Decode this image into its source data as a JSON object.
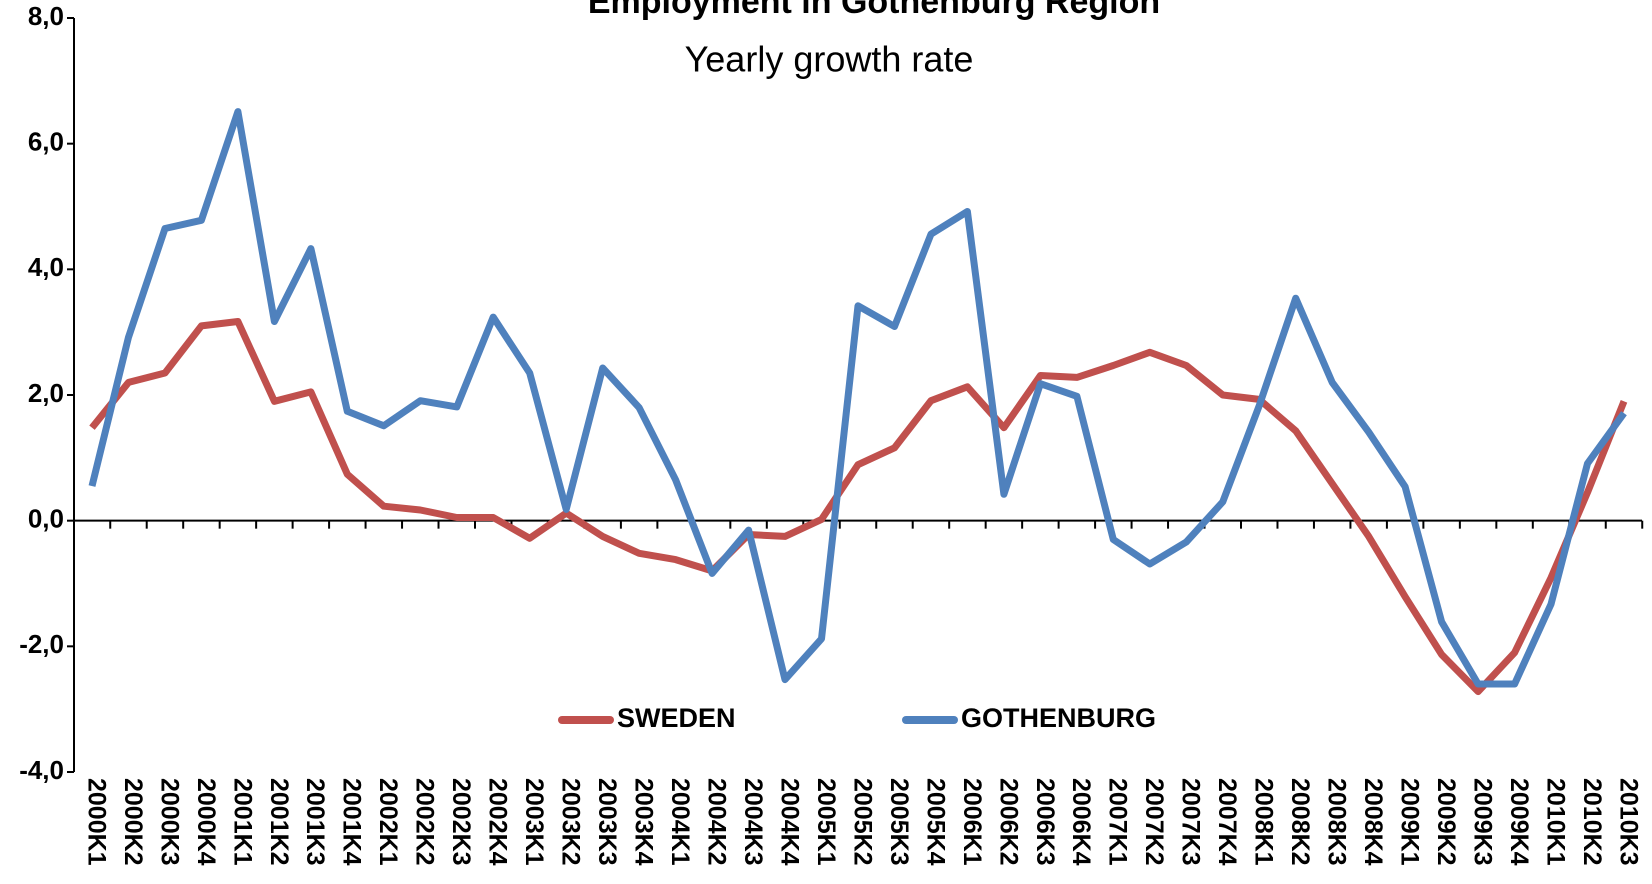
{
  "chart_data": {
    "type": "line",
    "title": "Employment in Gothenburg Region",
    "subtitle": "Yearly growth rate",
    "categories": [
      "2000K1",
      "2000K2",
      "2000K3",
      "2000K4",
      "2001K1",
      "2001K2",
      "2001K3",
      "2001K4",
      "2002K1",
      "2002K2",
      "2002K3",
      "2002K4",
      "2003K1",
      "2003K2",
      "2003K3",
      "2003K4",
      "2004K1",
      "2004K2",
      "2004K3",
      "2004K4",
      "2005K1",
      "2005K2",
      "2005K3",
      "2005K4",
      "2006K1",
      "2006K2",
      "2006K3",
      "2006K4",
      "2007K1",
      "2007K2",
      "2007K3",
      "2007K4",
      "2008K1",
      "2008K2",
      "2008K3",
      "2008K4",
      "2009K1",
      "2009K2",
      "2009K3",
      "2009K4",
      "2010K1",
      "2010K2",
      "2010K3"
    ],
    "series": [
      {
        "name": "SWEDEN",
        "color": "#c0504d",
        "values": [
          1.48,
          2.2,
          2.35,
          3.1,
          3.17,
          1.9,
          2.05,
          0.74,
          0.23,
          0.17,
          0.05,
          0.05,
          -0.28,
          0.12,
          -0.25,
          -0.52,
          -0.62,
          -0.8,
          -0.22,
          -0.25,
          0.02,
          0.89,
          1.16,
          1.91,
          2.13,
          1.48,
          2.31,
          2.28,
          2.47,
          2.68,
          2.47,
          2.0,
          1.93,
          1.43,
          0.59,
          -0.25,
          -1.21,
          -2.13,
          -2.72,
          -2.1,
          -0.91,
          0.45,
          1.9
        ]
      },
      {
        "name": "GOTHENBURG",
        "color": "#4f81bd",
        "values": [
          0.55,
          2.92,
          4.65,
          4.78,
          6.51,
          3.17,
          4.33,
          1.74,
          1.51,
          1.91,
          1.81,
          3.24,
          2.35,
          0.18,
          2.43,
          1.8,
          0.65,
          -0.84,
          -0.15,
          -2.53,
          -1.88,
          3.42,
          3.09,
          4.56,
          4.92,
          0.42,
          2.18,
          1.98,
          -0.3,
          -0.69,
          -0.34,
          0.3,
          1.83,
          3.54,
          2.2,
          1.41,
          0.54,
          -1.61,
          -2.6,
          -2.6,
          -1.33,
          0.91,
          1.71
        ]
      }
    ],
    "ylim": [
      -4,
      8
    ],
    "yticks": [
      {
        "value": -4,
        "label": "-4,0"
      },
      {
        "value": -2,
        "label": "-2,0"
      },
      {
        "value": 0,
        "label": "0,0"
      },
      {
        "value": 2,
        "label": "2,0"
      },
      {
        "value": 4,
        "label": "4,0"
      },
      {
        "value": 6,
        "label": "6,0"
      },
      {
        "value": 8,
        "label": "8,0"
      }
    ],
    "grid": false,
    "legend": "bottom"
  }
}
